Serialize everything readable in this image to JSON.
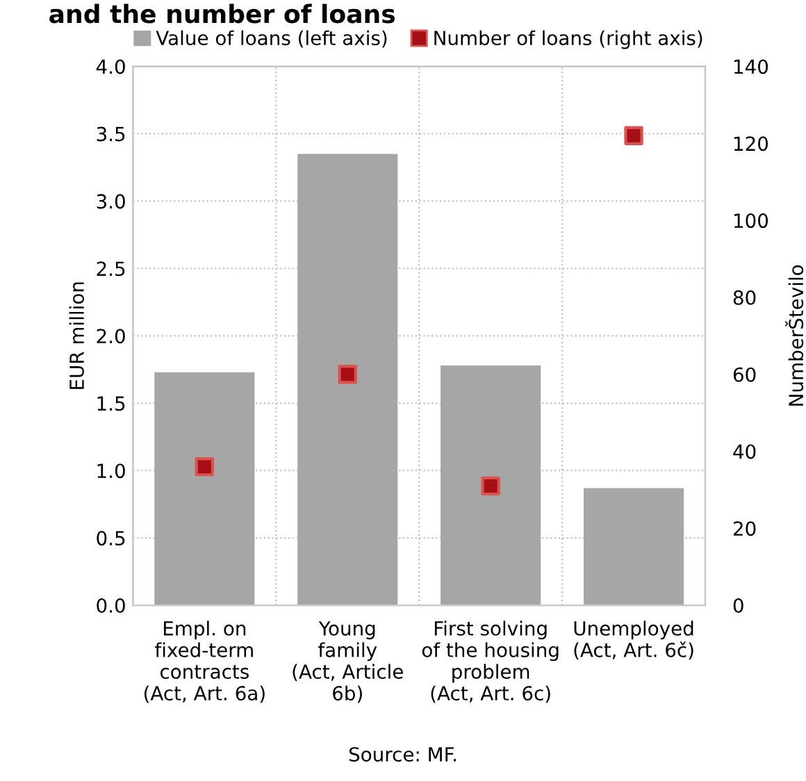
{
  "chart_data": {
    "type": "bar",
    "title": "and the number of loans",
    "categories": [
      "Empl. on\nfixed-term\ncontracts\n(Act, Art. 6a)",
      "Young\nfamily\n(Act, Article\n6b)",
      "First solving\nof the housing\nproblem\n(Act, Art. 6c)",
      "Unemployed\n(Act, Art. 6č)"
    ],
    "series": [
      {
        "name": "Value of loans (left axis)",
        "color": "#a6a6a6",
        "values": [
          1.73,
          3.35,
          1.78,
          0.87
        ]
      },
      {
        "name": "Number of loans (right axis)",
        "color": "#a50f15",
        "type": "scatter",
        "axis": "y2",
        "marker": "square",
        "values": [
          36,
          60,
          31,
          122
        ]
      }
    ],
    "ylabel": "EUR million",
    "y2label": "NumberŠtevilo",
    "ylim": [
      0,
      4.0
    ],
    "yticks": [
      {
        "value": 0,
        "label": "0.0"
      },
      {
        "value": 0.5,
        "label": "0.5"
      },
      {
        "value": 1.0,
        "label": "1.0"
      },
      {
        "value": 1.5,
        "label": "1.5"
      },
      {
        "value": 2.0,
        "label": "2.0"
      },
      {
        "value": 2.5,
        "label": "2.5"
      },
      {
        "value": 3.0,
        "label": "3.0"
      },
      {
        "value": 3.5,
        "label": "3.5"
      },
      {
        "value": 4.0,
        "label": "4.0"
      }
    ],
    "y2lim": [
      0,
      140
    ],
    "y2ticks": [
      0,
      20,
      40,
      60,
      80,
      100,
      120,
      140
    ],
    "grid": true,
    "legend": "top",
    "annotations": [
      "Source: MF."
    ]
  }
}
